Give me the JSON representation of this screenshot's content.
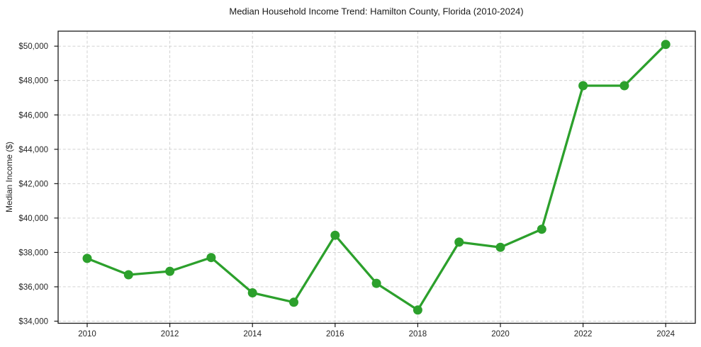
{
  "chart_data": {
    "type": "line",
    "title": "Median Household Income Trend: Hamilton County, Florida (2010-2024)",
    "xlabel": "",
    "ylabel": "Median Income ($)",
    "x": [
      2010,
      2011,
      2012,
      2013,
      2014,
      2015,
      2016,
      2017,
      2018,
      2019,
      2020,
      2021,
      2022,
      2023,
      2024
    ],
    "values": [
      37650,
      36700,
      36900,
      37700,
      35650,
      35100,
      39000,
      36200,
      34650,
      38600,
      38300,
      39350,
      47700,
      47700,
      50100
    ],
    "xticks": [
      2010,
      2012,
      2014,
      2016,
      2018,
      2020,
      2022,
      2024
    ],
    "yticks": [
      {
        "value": 34000,
        "label": "$34,000"
      },
      {
        "value": 36000,
        "label": "$36,000"
      },
      {
        "value": 38000,
        "label": "$38,000"
      },
      {
        "value": 40000,
        "label": "$40,000"
      },
      {
        "value": 42000,
        "label": "$42,000"
      },
      {
        "value": 44000,
        "label": "$44,000"
      },
      {
        "value": 46000,
        "label": "$46,000"
      },
      {
        "value": 48000,
        "label": "$48,000"
      },
      {
        "value": 50000,
        "label": "$50,000"
      }
    ],
    "ylim": [
      34000,
      50000
    ],
    "grid": true,
    "grid_style": "dashed",
    "legend_position": "none",
    "line_color": "#2ca02c",
    "marker": "circle",
    "marker_color": "#2ca02c",
    "grid_color": "#cccccc",
    "axis_color": "#1a1a1a",
    "tick_label_color": "#262626",
    "background_color": "#ffffff"
  }
}
